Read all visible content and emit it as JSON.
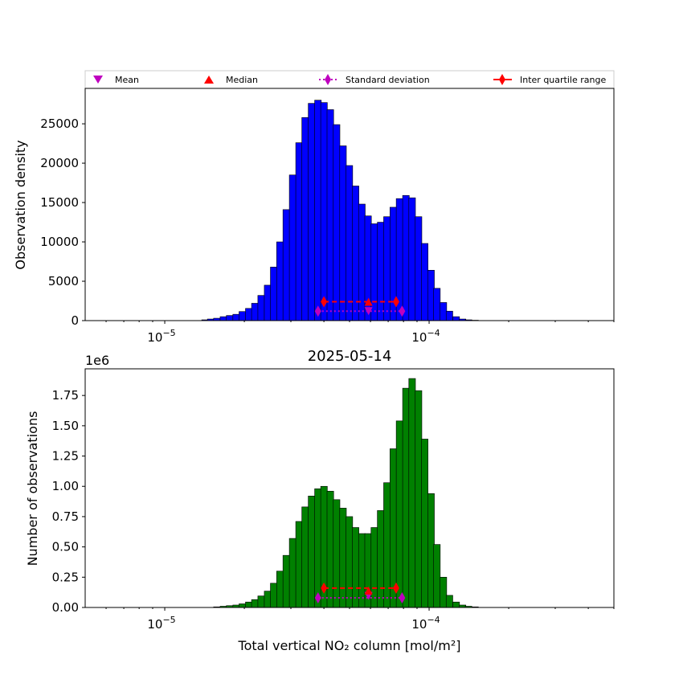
{
  "colors": {
    "top_bars": "#0000ff",
    "bottom_bars": "#008000",
    "mean": "#bf00bf",
    "median": "#ff0000",
    "std": "#bf00bf",
    "iqr": "#ff0000"
  },
  "legend": {
    "mean": "Mean",
    "median": "Median",
    "std": "Standard deviation",
    "iqr": "Inter quartile range"
  },
  "chart_data": [
    {
      "type": "bar",
      "panel": "top",
      "title": "",
      "xlabel": "",
      "ylabel": "Observation density",
      "xscale": "log",
      "xlim": [
        5e-06,
        0.0005
      ],
      "ylim": [
        0,
        29500
      ],
      "yticks": [
        "0",
        "5000",
        "10000",
        "15000",
        "20000",
        "25000"
      ],
      "xticks": [
        {
          "base": "10",
          "exp": "−5",
          "value": 1e-05
        },
        {
          "base": "10",
          "exp": "−4",
          "value": 0.0001
        }
      ],
      "bin_edges_log10": [
        -5.0,
        -4.0
      ],
      "bins": [
        {
          "x": 1.38e-05,
          "y": 100
        },
        {
          "x": 1.45e-05,
          "y": 200
        },
        {
          "x": 1.53e-05,
          "y": 300
        },
        {
          "x": 1.62e-05,
          "y": 500
        },
        {
          "x": 1.71e-05,
          "y": 650
        },
        {
          "x": 1.81e-05,
          "y": 800
        },
        {
          "x": 1.91e-05,
          "y": 1150
        },
        {
          "x": 2.02e-05,
          "y": 1550
        },
        {
          "x": 2.13e-05,
          "y": 2200
        },
        {
          "x": 2.25e-05,
          "y": 3200
        },
        {
          "x": 2.38e-05,
          "y": 4500
        },
        {
          "x": 2.51e-05,
          "y": 6800
        },
        {
          "x": 2.65e-05,
          "y": 10000
        },
        {
          "x": 2.8e-05,
          "y": 14100
        },
        {
          "x": 2.96e-05,
          "y": 18500
        },
        {
          "x": 3.13e-05,
          "y": 22600
        },
        {
          "x": 3.3e-05,
          "y": 25800
        },
        {
          "x": 3.49e-05,
          "y": 27600
        },
        {
          "x": 3.69e-05,
          "y": 28000
        },
        {
          "x": 3.89e-05,
          "y": 27700
        },
        {
          "x": 4.11e-05,
          "y": 26800
        },
        {
          "x": 4.34e-05,
          "y": 24900
        },
        {
          "x": 4.59e-05,
          "y": 22200
        },
        {
          "x": 4.85e-05,
          "y": 19700
        },
        {
          "x": 5.12e-05,
          "y": 17100
        },
        {
          "x": 5.41e-05,
          "y": 14800
        },
        {
          "x": 5.71e-05,
          "y": 13300
        },
        {
          "x": 6.03e-05,
          "y": 12300
        },
        {
          "x": 6.37e-05,
          "y": 12500
        },
        {
          "x": 6.73e-05,
          "y": 13200
        },
        {
          "x": 7.11e-05,
          "y": 14400
        },
        {
          "x": 7.51e-05,
          "y": 15500
        },
        {
          "x": 7.94e-05,
          "y": 15900
        },
        {
          "x": 8.38e-05,
          "y": 15600
        },
        {
          "x": 8.86e-05,
          "y": 13200
        },
        {
          "x": 9.35e-05,
          "y": 9800
        },
        {
          "x": 9.88e-05,
          "y": 6400
        },
        {
          "x": 0.000104,
          "y": 4100
        },
        {
          "x": 0.00011,
          "y": 2300
        },
        {
          "x": 0.000116,
          "y": 1200
        },
        {
          "x": 0.000123,
          "y": 500
        },
        {
          "x": 0.00013,
          "y": 200
        },
        {
          "x": 0.000137,
          "y": 100
        },
        {
          "x": 0.000145,
          "y": 50
        }
      ],
      "stats": {
        "mean": 5.9e-05,
        "median": 5.9e-05,
        "std_range": [
          3.8e-05,
          7.9e-05
        ],
        "iqr_range": [
          4e-05,
          7.5e-05
        ],
        "iqr_y": 2400,
        "median_y": 2400,
        "std_y": 1200,
        "mean_y": 1200
      }
    },
    {
      "type": "bar",
      "panel": "bottom",
      "title": "2025-05-14",
      "xlabel": "Total vertical NO₂ column [mol/m²]",
      "ylabel": "Number of observations",
      "y_offset_label": "1e6",
      "xscale": "log",
      "xlim": [
        5e-06,
        0.0005
      ],
      "ylim": [
        0,
        1.97
      ],
      "yticks": [
        "0.00",
        "0.25",
        "0.50",
        "0.75",
        "1.00",
        "1.25",
        "1.50",
        "1.75"
      ],
      "xticks": [
        {
          "base": "10",
          "exp": "−5",
          "value": 1e-05
        },
        {
          "base": "10",
          "exp": "−4",
          "value": 0.0001
        }
      ],
      "bins": [
        {
          "x": 1.53e-05,
          "y": 0.005
        },
        {
          "x": 1.62e-05,
          "y": 0.01
        },
        {
          "x": 1.71e-05,
          "y": 0.015
        },
        {
          "x": 1.81e-05,
          "y": 0.02
        },
        {
          "x": 1.91e-05,
          "y": 0.03
        },
        {
          "x": 2.02e-05,
          "y": 0.045
        },
        {
          "x": 2.13e-05,
          "y": 0.065
        },
        {
          "x": 2.25e-05,
          "y": 0.095
        },
        {
          "x": 2.38e-05,
          "y": 0.135
        },
        {
          "x": 2.51e-05,
          "y": 0.2
        },
        {
          "x": 2.65e-05,
          "y": 0.3
        },
        {
          "x": 2.8e-05,
          "y": 0.43
        },
        {
          "x": 2.96e-05,
          "y": 0.57
        },
        {
          "x": 3.13e-05,
          "y": 0.71
        },
        {
          "x": 3.3e-05,
          "y": 0.83
        },
        {
          "x": 3.49e-05,
          "y": 0.92
        },
        {
          "x": 3.69e-05,
          "y": 0.98
        },
        {
          "x": 3.89e-05,
          "y": 1.0
        },
        {
          "x": 4.11e-05,
          "y": 0.96
        },
        {
          "x": 4.34e-05,
          "y": 0.89
        },
        {
          "x": 4.59e-05,
          "y": 0.82
        },
        {
          "x": 4.85e-05,
          "y": 0.75
        },
        {
          "x": 5.12e-05,
          "y": 0.66
        },
        {
          "x": 5.41e-05,
          "y": 0.61
        },
        {
          "x": 5.71e-05,
          "y": 0.61
        },
        {
          "x": 6.03e-05,
          "y": 0.66
        },
        {
          "x": 6.37e-05,
          "y": 0.8
        },
        {
          "x": 6.73e-05,
          "y": 1.03
        },
        {
          "x": 7.11e-05,
          "y": 1.31
        },
        {
          "x": 7.51e-05,
          "y": 1.54
        },
        {
          "x": 7.94e-05,
          "y": 1.81
        },
        {
          "x": 8.38e-05,
          "y": 1.89
        },
        {
          "x": 8.86e-05,
          "y": 1.79
        },
        {
          "x": 9.35e-05,
          "y": 1.39
        },
        {
          "x": 9.88e-05,
          "y": 0.94
        },
        {
          "x": 0.000104,
          "y": 0.52
        },
        {
          "x": 0.00011,
          "y": 0.25
        },
        {
          "x": 0.000116,
          "y": 0.1
        },
        {
          "x": 0.000123,
          "y": 0.045
        },
        {
          "x": 0.00013,
          "y": 0.02
        },
        {
          "x": 0.000137,
          "y": 0.01
        },
        {
          "x": 0.000145,
          "y": 0.005
        }
      ],
      "stats": {
        "mean": 5.9e-05,
        "median": 5.9e-05,
        "std_range": [
          3.8e-05,
          7.9e-05
        ],
        "iqr_range": [
          4e-05,
          7.5e-05
        ],
        "iqr_y": 0.16,
        "median_y": 0.14,
        "std_y": 0.08,
        "mean_y": 0.095
      }
    }
  ]
}
